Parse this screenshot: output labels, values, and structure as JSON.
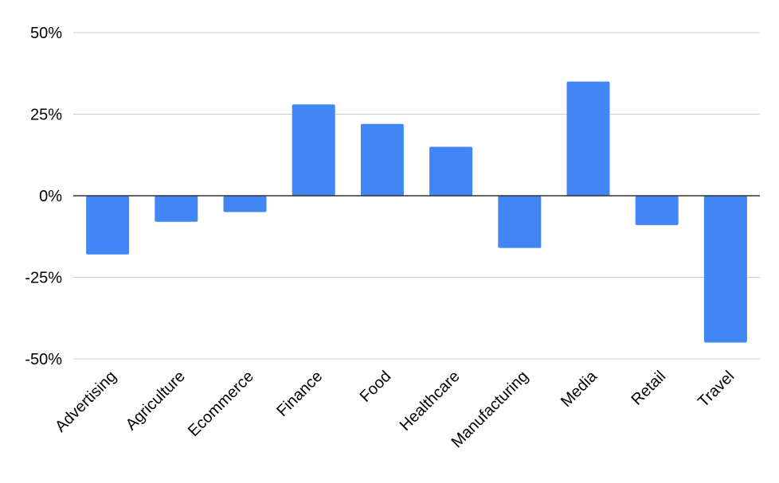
{
  "chart_data": {
    "type": "bar",
    "title": "",
    "xlabel": "",
    "ylabel": "",
    "categories": [
      "Advertising",
      "Agriculture",
      "Ecommerce",
      "Finance",
      "Food",
      "Healthcare",
      "Manufacturing",
      "Media",
      "Retail",
      "Travel"
    ],
    "values": [
      -18,
      -8,
      -5,
      28,
      22,
      15,
      -16,
      35,
      -9,
      -45
    ],
    "ylim": [
      -50,
      50
    ],
    "yticks": [
      50,
      25,
      0,
      -25,
      -50
    ],
    "ytick_labels": [
      "50%",
      "25%",
      "0%",
      "-25%",
      "-50%"
    ],
    "grid": true,
    "legend": "none",
    "colors": {
      "bar": "#4285f4",
      "grid": "#cccccc",
      "zero_line": "#333333"
    }
  }
}
